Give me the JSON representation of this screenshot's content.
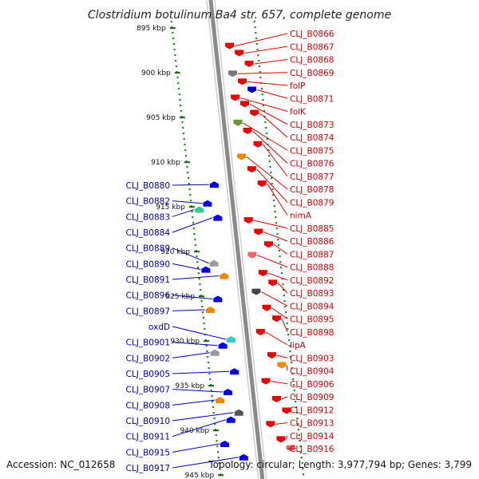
{
  "title": "Clostridium botulinum Ba4 str. 657, complete genome",
  "footer": {
    "accession": "Accession: NC_012658",
    "summary": "Topology: circular; Length: 3,977,794 bp; Genes: 3,799"
  },
  "ticks": [
    {
      "label": "895 kbp",
      "pos": 895
    },
    {
      "label": "900 kbp",
      "pos": 900
    },
    {
      "label": "905 kbp",
      "pos": 905
    },
    {
      "label": "910 kbp",
      "pos": 910
    },
    {
      "label": "915 kbp",
      "pos": 915
    },
    {
      "label": "920 kbp",
      "pos": 920
    },
    {
      "label": "925 kbp",
      "pos": 925
    },
    {
      "label": "930 kbp",
      "pos": 930
    },
    {
      "label": "935 kbp",
      "pos": 935
    },
    {
      "label": "940 kbp",
      "pos": 940
    },
    {
      "label": "945 kbp",
      "pos": 945
    }
  ],
  "genes_right": [
    {
      "label": "CLJ_B0866",
      "pos": 897.0,
      "color": "#ee0000"
    },
    {
      "label": "CLJ_B0867",
      "pos": 897.8,
      "color": "#ee0000"
    },
    {
      "label": "CLJ_B0868",
      "pos": 899.0,
      "color": "#ee0000"
    },
    {
      "label": "CLJ_B0869",
      "pos": 900.1,
      "color": "#777777"
    },
    {
      "label": "folP",
      "pos": 901.0,
      "color": "#ee0000"
    },
    {
      "label": "CLJ_B0871",
      "pos": 901.9,
      "color": "#0000cc"
    },
    {
      "label": "folK",
      "pos": 902.8,
      "color": "#ee0000"
    },
    {
      "label": "CLJ_B0873",
      "pos": 903.5,
      "color": "#ee0000"
    },
    {
      "label": "CLJ_B0874",
      "pos": 904.5,
      "color": "#ee0000"
    },
    {
      "label": "CLJ_B0875",
      "pos": 905.6,
      "color": "#669933"
    },
    {
      "label": "CLJ_B0876",
      "pos": 906.5,
      "color": "#ee0000"
    },
    {
      "label": "CLJ_B0877",
      "pos": 908.0,
      "color": "#ee0000"
    },
    {
      "label": "CLJ_B0878",
      "pos": 909.4,
      "color": "#ee8800"
    },
    {
      "label": "CLJ_B0879",
      "pos": 910.8,
      "color": "#ee0000"
    },
    {
      "label": "nimA",
      "pos": 912.4,
      "color": "#ee0000"
    },
    {
      "label": "CLJ_B0885",
      "pos": 916.5,
      "color": "#ee0000"
    },
    {
      "label": "CLJ_B0886",
      "pos": 917.8,
      "color": "#ee0000"
    },
    {
      "label": "CLJ_B0887",
      "pos": 919.2,
      "color": "#ee0000"
    },
    {
      "label": "CLJ_B0888",
      "pos": 920.4,
      "color": "#ee6666"
    },
    {
      "label": "CLJ_B0892",
      "pos": 922.4,
      "color": "#ee0000"
    },
    {
      "label": "CLJ_B0893",
      "pos": 923.5,
      "color": "#ee0000"
    },
    {
      "label": "CLJ_B0894",
      "pos": 924.5,
      "color": "#444444"
    },
    {
      "label": "CLJ_B0895",
      "pos": 926.3,
      "color": "#ee0000"
    },
    {
      "label": "CLJ_B0898",
      "pos": 927.5,
      "color": "#ee0000"
    },
    {
      "label": "lipA",
      "pos": 929.0,
      "color": "#ee0000"
    },
    {
      "label": "CLJ_B0903",
      "pos": 931.6,
      "color": "#ee0000"
    },
    {
      "label": "CLJ_B0904",
      "pos": 932.7,
      "color": "#ee8800"
    },
    {
      "label": "CLJ_B0906",
      "pos": 934.5,
      "color": "#ee0000"
    },
    {
      "label": "CLJ_B0909",
      "pos": 936.5,
      "color": "#ee0000"
    },
    {
      "label": "CLJ_B0912",
      "pos": 937.8,
      "color": "#ee0000"
    },
    {
      "label": "CLJ_B0913",
      "pos": 939.3,
      "color": "#ee0000"
    },
    {
      "label": "CLJ_B0914",
      "pos": 941.0,
      "color": "#ee0000"
    },
    {
      "label": "CLJ_B0916",
      "pos": 942.0,
      "color": "#ee6666"
    }
  ],
  "genes_left": [
    {
      "label": "CLJ_B0880",
      "pos": 912.5,
      "color": "#0000ee"
    },
    {
      "label": "CLJ_B0882",
      "pos": 914.6,
      "color": "#0000ee"
    },
    {
      "label": "CLJ_B0883",
      "pos": 915.3,
      "color": "#33cc99"
    },
    {
      "label": "CLJ_B0884",
      "pos": 916.2,
      "color": "#0000ee"
    },
    {
      "label": "CLJ_B0889",
      "pos": 921.3,
      "color": "#999999"
    },
    {
      "label": "CLJ_B0890",
      "pos": 922.0,
      "color": "#0000ee"
    },
    {
      "label": "CLJ_B0891",
      "pos": 922.7,
      "color": "#ee8800"
    },
    {
      "label": "CLJ_B0896",
      "pos": 925.3,
      "color": "#0000ee"
    },
    {
      "label": "CLJ_B0897",
      "pos": 926.5,
      "color": "#ee8800"
    },
    {
      "label": "oxdD",
      "pos": 929.8,
      "color": "#33cccc"
    },
    {
      "label": "CLJ_B0901",
      "pos": 930.5,
      "color": "#0000ee"
    },
    {
      "label": "CLJ_B0902",
      "pos": 931.3,
      "color": "#999999"
    },
    {
      "label": "CLJ_B0905",
      "pos": 933.4,
      "color": "#0000ee"
    },
    {
      "label": "CLJ_B0907",
      "pos": 935.7,
      "color": "#0000ee"
    },
    {
      "label": "CLJ_B0908",
      "pos": 936.6,
      "color": "#ee8800"
    },
    {
      "label": "CLJ_B0910",
      "pos": 938.0,
      "color": "#555555"
    },
    {
      "label": "CLJ_B0911",
      "pos": 938.8,
      "color": "#0000ee"
    },
    {
      "label": "CLJ_B0915",
      "pos": 941.5,
      "color": "#0000ee"
    },
    {
      "label": "CLJ_B0917",
      "pos": 943.0,
      "color": "#0000ee"
    }
  ]
}
